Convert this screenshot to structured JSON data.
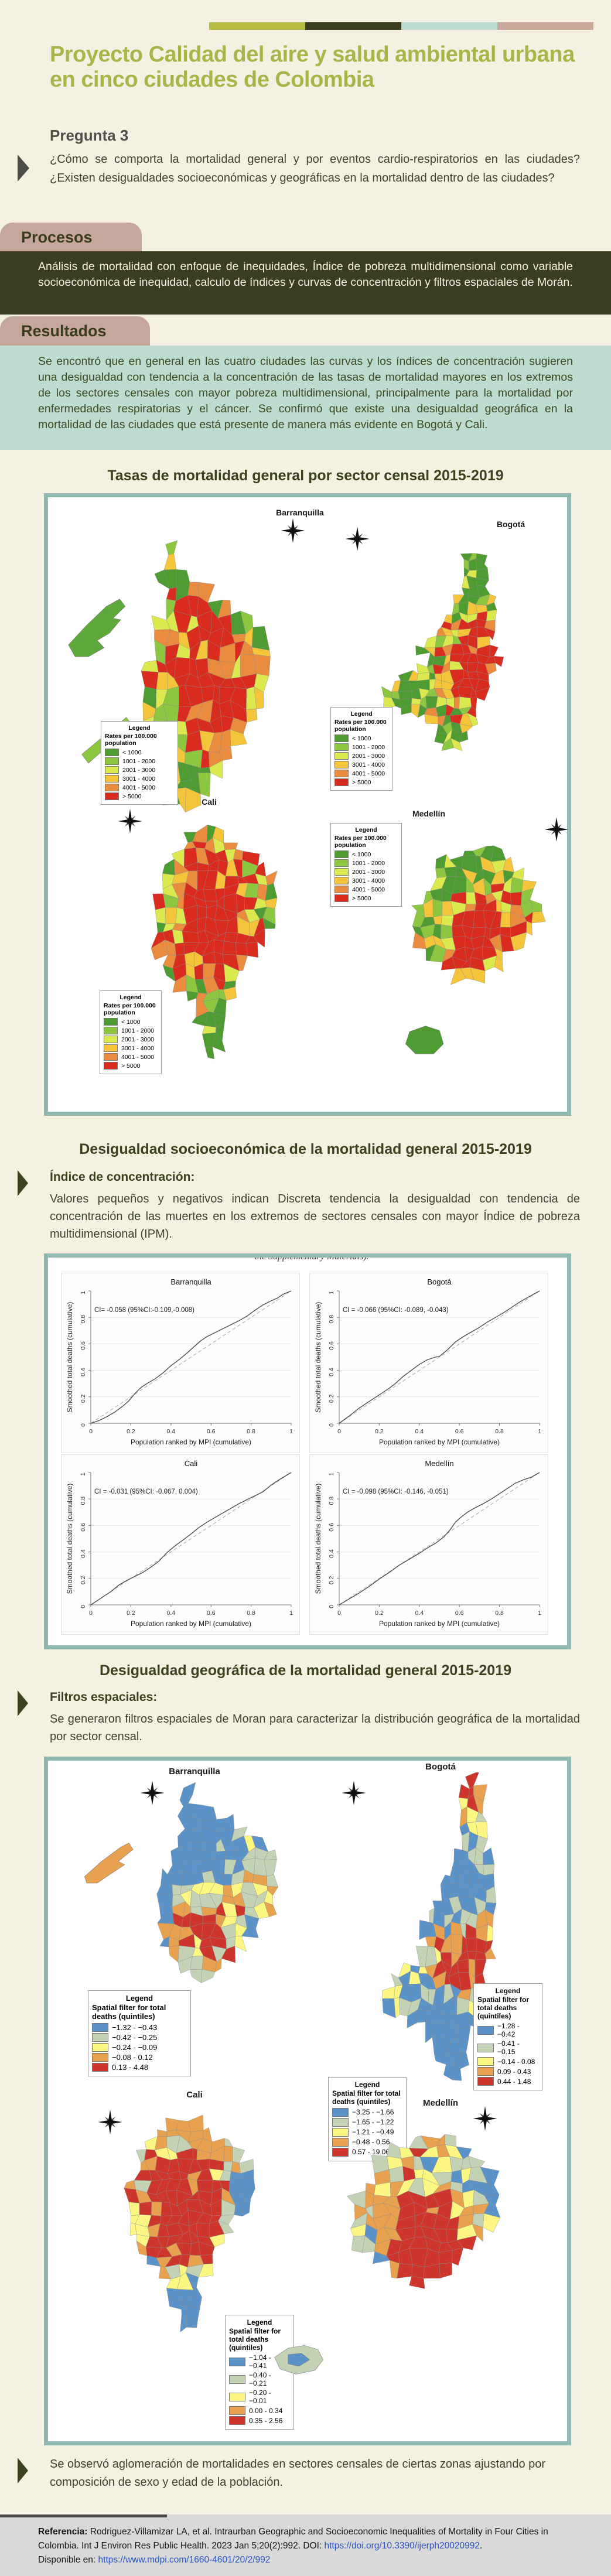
{
  "accent_colors": [
    "#b8bd44",
    "#3a3d1d",
    "#bddcd0",
    "#c9a89b"
  ],
  "header": {
    "title": "Proyecto Calidad del aire y salud ambiental urbana en cinco ciudades de Colombia",
    "subtitle": "Pregunta 3",
    "question": "¿Cómo se comporta la mortalidad general y por eventos cardio-respiratorios en las ciudades? ¿Existen desigualdades socioeconómicas y geográficas en la mortalidad dentro de las ciudades?"
  },
  "procesos": {
    "tab": "Procesos",
    "body": "Análisis de mortalidad con enfoque de inequidades, Índice de pobreza multidimensional como variable socioeconómica de inequidad, calculo de índices y curvas de concentración y filtros espaciales de Morán."
  },
  "resultados": {
    "tab": "Resultados",
    "body": "Se encontró que en general en las cuatro ciudades las curvas y los índices de concentración sugieren una desigualdad con tendencia a la concentración de las tasas de mortalidad mayores en los extremos de los sectores censales con mayor pobreza multidimensional, principalmente para la mortalidad por enfermedades respiratorias y el cáncer. Se confirmó que existe una desigualdad geográfica en la mortalidad de las ciudades que está presente de manera más evidente en Bogotá y Cali."
  },
  "cities": [
    "Barranquilla",
    "Bogotá",
    "Cali",
    "Medellín"
  ],
  "fig1_heading": "Tasas de mortalidad general por sector censal 2015-2019",
  "sec2": {
    "heading": "Desigualdad socioeconómica de la mortalidad general 2015-2019",
    "bullet": "Índice de concentración:",
    "body": "Valores pequeños y negativos indican Discreta tendencia la desigualdad con tendencia de concentración de las muertes en los extremos de sectores censales con mayor Índice de pobreza multidimensional (IPM)."
  },
  "fig2_caption_fragment": "the Supplementary Materials).",
  "sec3": {
    "heading": "Desigualdad geográfica de la mortalidad general 2015-2019",
    "bullet": "Filtros espaciales:",
    "body": "Se generaron filtros espaciales de Moran para caracterizar la distribución geográfica de la mortalidad por sector censal."
  },
  "conclusion": "Se observó aglomeración de mortalidades en sectores censales de ciertas zonas ajustando por composición de sexo y edad de la población.",
  "footer": {
    "label": "Referencia:",
    "ref": " Rodriguez-Villamizar LA, et al. Intraurban Geographic and Socioeconomic Inequalities of Mortality in Four Cities in Colombia. Int J Environ Res Public Health. 2023 Jan 5;20(2):992. DOI: ",
    "doi_link": "https://doi.org/10.3390/ijerph20020992",
    "after_doi": ".",
    "disp_label": "Disponible en:  ",
    "url_link": "https://www.mdpi.com/1660-4601/20/2/992"
  },
  "palettes": {
    "mortality": [
      "#4e9b31",
      "#8dc63f",
      "#dce94e",
      "#f4c53b",
      "#e98c3e",
      "#d92b1e"
    ],
    "spatial": [
      "#5b92c8",
      "#c3d2b4",
      "#fcf782",
      "#e8a14e",
      "#ce352c"
    ]
  },
  "chart_data": {
    "charts": [
      {
        "type": "line",
        "title": "Barranquilla",
        "annotation": "CI= -0.058 (95%CI:-0.109,-0.008)",
        "xlabel": "Population ranked by MPI (cumulative)",
        "ylabel": "Smoothed total deaths (cumulative)",
        "xlim": [
          0,
          1
        ],
        "ylim": [
          0,
          1
        ],
        "xticks": [
          0,
          0.2,
          0.4,
          0.6,
          0.8,
          1
        ],
        "yticks": [
          0,
          0.2,
          0.4,
          0.6,
          0.8,
          1
        ],
        "series": [
          {
            "name": "concentration curve",
            "style": "solid",
            "points": [
              [
                0,
                0
              ],
              [
                0.04,
                0.02
              ],
              [
                0.08,
                0.05
              ],
              [
                0.12,
                0.085
              ],
              [
                0.16,
                0.13
              ],
              [
                0.19,
                0.17
              ],
              [
                0.22,
                0.225
              ],
              [
                0.25,
                0.27
              ],
              [
                0.28,
                0.3
              ],
              [
                0.32,
                0.335
              ],
              [
                0.36,
                0.38
              ],
              [
                0.4,
                0.435
              ],
              [
                0.44,
                0.48
              ],
              [
                0.48,
                0.53
              ],
              [
                0.52,
                0.585
              ],
              [
                0.55,
                0.625
              ],
              [
                0.58,
                0.655
              ],
              [
                0.62,
                0.685
              ],
              [
                0.66,
                0.715
              ],
              [
                0.7,
                0.745
              ],
              [
                0.74,
                0.775
              ],
              [
                0.78,
                0.81
              ],
              [
                0.82,
                0.855
              ],
              [
                0.86,
                0.895
              ],
              [
                0.9,
                0.925
              ],
              [
                0.93,
                0.945
              ],
              [
                0.96,
                0.975
              ],
              [
                1,
                1
              ]
            ]
          },
          {
            "name": "equality line",
            "style": "dashed",
            "points": [
              [
                0,
                0
              ],
              [
                1,
                1
              ]
            ]
          }
        ]
      },
      {
        "type": "line",
        "title": "Bogotá",
        "annotation": "CI = -0.066 (95%CI: -0.089, -0.043)",
        "xlabel": "Population ranked by MPI (cumulative)",
        "ylabel": "Smoothed total deaths (cumulative)",
        "xlim": [
          0,
          1
        ],
        "ylim": [
          0,
          1
        ],
        "xticks": [
          0,
          0.2,
          0.4,
          0.6,
          0.8,
          1
        ],
        "yticks": [
          0,
          0.2,
          0.4,
          0.6,
          0.8,
          1
        ],
        "series": [
          {
            "name": "concentration curve",
            "style": "solid",
            "points": [
              [
                0,
                0
              ],
              [
                0.05,
                0.055
              ],
              [
                0.1,
                0.115
              ],
              [
                0.15,
                0.165
              ],
              [
                0.2,
                0.215
              ],
              [
                0.25,
                0.265
              ],
              [
                0.28,
                0.3
              ],
              [
                0.32,
                0.355
              ],
              [
                0.36,
                0.4
              ],
              [
                0.4,
                0.445
              ],
              [
                0.44,
                0.48
              ],
              [
                0.48,
                0.5
              ],
              [
                0.5,
                0.505
              ],
              [
                0.54,
                0.555
              ],
              [
                0.58,
                0.615
              ],
              [
                0.62,
                0.655
              ],
              [
                0.66,
                0.69
              ],
              [
                0.7,
                0.725
              ],
              [
                0.74,
                0.765
              ],
              [
                0.78,
                0.8
              ],
              [
                0.82,
                0.835
              ],
              [
                0.86,
                0.875
              ],
              [
                0.9,
                0.915
              ],
              [
                0.94,
                0.95
              ],
              [
                1,
                1
              ]
            ]
          },
          {
            "name": "equality line",
            "style": "dashed",
            "points": [
              [
                0,
                0
              ],
              [
                1,
                1
              ]
            ]
          }
        ]
      },
      {
        "type": "line",
        "title": "Cali",
        "annotation": "CI = -0.031 (95%CI: -0.067, 0.004)",
        "xlabel": "Population ranked by MPI (cumulative)",
        "ylabel": "Smoothed total deaths (cumulative)",
        "xlim": [
          0,
          1
        ],
        "ylim": [
          0,
          1
        ],
        "xticks": [
          0,
          0.2,
          0.4,
          0.6,
          0.8,
          1
        ],
        "yticks": [
          0,
          0.2,
          0.4,
          0.6,
          0.8,
          1
        ],
        "series": [
          {
            "name": "concentration curve",
            "style": "solid",
            "points": [
              [
                0,
                0
              ],
              [
                0.05,
                0.05
              ],
              [
                0.1,
                0.1
              ],
              [
                0.14,
                0.15
              ],
              [
                0.18,
                0.185
              ],
              [
                0.22,
                0.215
              ],
              [
                0.26,
                0.245
              ],
              [
                0.3,
                0.285
              ],
              [
                0.34,
                0.33
              ],
              [
                0.38,
                0.395
              ],
              [
                0.42,
                0.445
              ],
              [
                0.46,
                0.49
              ],
              [
                0.5,
                0.535
              ],
              [
                0.54,
                0.585
              ],
              [
                0.58,
                0.625
              ],
              [
                0.62,
                0.66
              ],
              [
                0.66,
                0.695
              ],
              [
                0.7,
                0.73
              ],
              [
                0.74,
                0.765
              ],
              [
                0.78,
                0.795
              ],
              [
                0.82,
                0.825
              ],
              [
                0.86,
                0.855
              ],
              [
                0.9,
                0.905
              ],
              [
                0.94,
                0.945
              ],
              [
                1,
                1
              ]
            ]
          },
          {
            "name": "equality line",
            "style": "dashed",
            "points": [
              [
                0,
                0
              ],
              [
                1,
                1
              ]
            ]
          }
        ]
      },
      {
        "type": "line",
        "title": "Medellín",
        "annotation": "CI = -0.098 (95%CI: -0.146, -0.051)",
        "xlabel": "Population ranked by MPI (cumulative)",
        "ylabel": "Smoothed total deaths (cumulative)",
        "xlim": [
          0,
          1
        ],
        "ylim": [
          0,
          1
        ],
        "xticks": [
          0,
          0.2,
          0.4,
          0.6,
          0.8,
          1
        ],
        "yticks": [
          0,
          0.2,
          0.4,
          0.6,
          0.8,
          1
        ],
        "series": [
          {
            "name": "concentration curve",
            "style": "solid",
            "points": [
              [
                0,
                0
              ],
              [
                0.05,
                0.045
              ],
              [
                0.1,
                0.09
              ],
              [
                0.15,
                0.14
              ],
              [
                0.2,
                0.195
              ],
              [
                0.25,
                0.245
              ],
              [
                0.3,
                0.3
              ],
              [
                0.35,
                0.345
              ],
              [
                0.4,
                0.39
              ],
              [
                0.44,
                0.43
              ],
              [
                0.48,
                0.465
              ],
              [
                0.52,
                0.51
              ],
              [
                0.55,
                0.56
              ],
              [
                0.58,
                0.625
              ],
              [
                0.61,
                0.665
              ],
              [
                0.64,
                0.7
              ],
              [
                0.68,
                0.735
              ],
              [
                0.72,
                0.765
              ],
              [
                0.76,
                0.8
              ],
              [
                0.8,
                0.84
              ],
              [
                0.84,
                0.88
              ],
              [
                0.88,
                0.92
              ],
              [
                0.92,
                0.945
              ],
              [
                0.96,
                0.965
              ],
              [
                1,
                1
              ]
            ]
          },
          {
            "name": "equality line",
            "style": "dashed",
            "points": [
              [
                0,
                0
              ],
              [
                1,
                1
              ]
            ]
          }
        ]
      }
    ],
    "choropleths": {
      "mortality_rates": {
        "type": "choropleth",
        "legend_title": "Legend",
        "unit": "Rates per 100.000 population",
        "classes": [
          "< 1000",
          "1001 - 2000",
          "2001 - 3000",
          "3001 - 4000",
          "4001 - 5000",
          "> 5000"
        ],
        "cities": [
          "Barranquilla",
          "Bogotá",
          "Cali",
          "Medellín"
        ]
      },
      "spatial_filter": {
        "type": "choropleth",
        "legend_title": "Legend",
        "unit": "Spatial filter for total deaths (quintiles)",
        "city_classes": {
          "barranquilla": [
            "−1.32 - −0.43",
            "−0.42 - −0.25",
            "−0.24 - −0.09",
            "−0.08 - 0.12",
            "0.13 - 4.48"
          ],
          "bogota": [
            "−1.28 - −0.42",
            "−0.41 - −0.15",
            "−0.14 - 0.08",
            "0.09 - 0.43",
            "0.44 - 1.48"
          ],
          "cali": [
            "−1.04 - −0.41",
            "−0.40 - −0.21",
            "−0.20 - −0.01",
            "0.00 - 0.34",
            "0.35 - 2.56"
          ],
          "medellin": [
            "−3.25 - −1.66",
            "−1.65 - −1.22",
            "−1.21 - −0.49",
            "−0.48 - 0.56",
            "0.57 - 19.06"
          ]
        }
      }
    }
  }
}
